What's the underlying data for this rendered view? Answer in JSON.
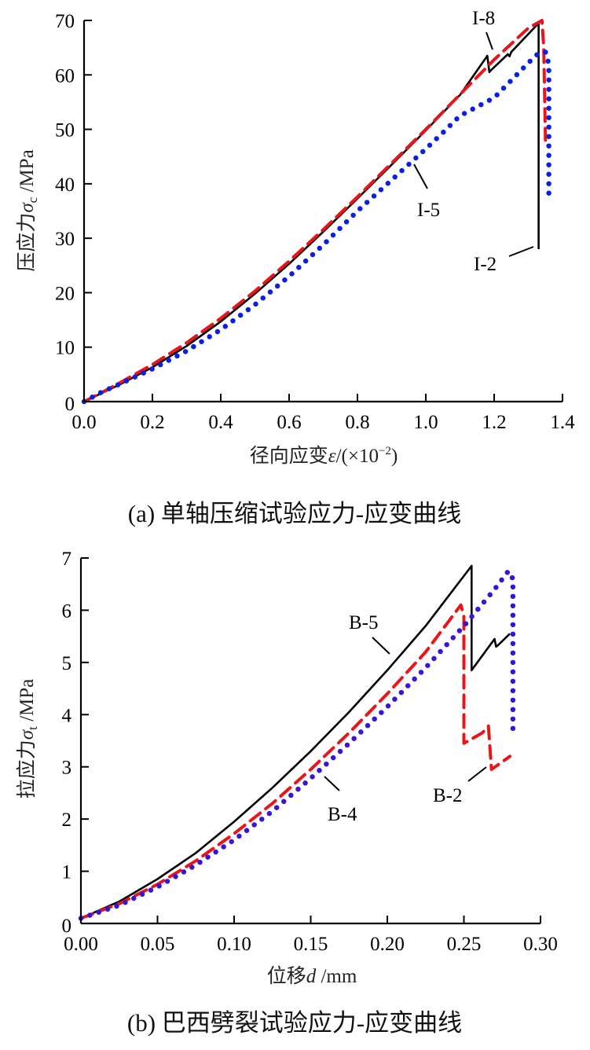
{
  "chart_data": [
    {
      "type": "line",
      "panel": "a",
      "caption": "(a)  单轴压缩试验应力-应变曲线",
      "xlabel": "径向应变ε /(×10⁻²)",
      "xlabel_parts": {
        "text": "径向应变",
        "symbol": "ε",
        "unit": "/(×10",
        "exp": "−2",
        "close": ")"
      },
      "ylabel_parts": {
        "text": "压应力",
        "symbol": "σ",
        "sub": "c",
        "unit": " /MPa"
      },
      "ylabel": "压应力σc /MPa",
      "xlim": [
        0,
        1.4
      ],
      "ylim": [
        0,
        70
      ],
      "x_ticks": [
        "0.0",
        "0.2",
        "0.4",
        "0.6",
        "0.8",
        "1.0",
        "1.2",
        "1.4"
      ],
      "x_tick_values": [
        0,
        0.2,
        0.4,
        0.6,
        0.8,
        1.0,
        1.2,
        1.4
      ],
      "y_ticks": [
        "0",
        "10",
        "20",
        "30",
        "40",
        "50",
        "60",
        "70"
      ],
      "y_tick_values": [
        0,
        10,
        20,
        30,
        40,
        50,
        60,
        70
      ],
      "grid": false,
      "series": [
        {
          "name": "I-2",
          "style": "solid",
          "color": "#000000",
          "x": [
            0,
            0.05,
            0.1,
            0.2,
            0.3,
            0.4,
            0.5,
            0.6,
            0.7,
            0.8,
            0.9,
            1.0,
            1.1,
            1.18,
            1.186,
            1.19,
            1.24,
            1.245,
            1.25,
            1.33,
            1.33
          ],
          "y": [
            0,
            1.5,
            3,
            6.3,
            10.2,
            14.7,
            19.8,
            25.3,
            31.2,
            37.3,
            43.5,
            49.8,
            56.3,
            63.5,
            60.5,
            60.8,
            63.8,
            63.4,
            64.2,
            69.5,
            28
          ]
        },
        {
          "name": "I-8",
          "style": "dashed",
          "color": "#e8151b",
          "x": [
            0,
            0.05,
            0.1,
            0.2,
            0.3,
            0.4,
            0.5,
            0.6,
            0.7,
            0.8,
            0.9,
            1.0,
            1.1,
            1.2,
            1.3,
            1.34,
            1.345,
            1.35
          ],
          "y": [
            0,
            1.6,
            3.3,
            6.8,
            10.8,
            15.3,
            20.3,
            25.8,
            31.6,
            37.6,
            43.8,
            50.0,
            56.4,
            62.8,
            68.6,
            70,
            65,
            48
          ]
        },
        {
          "name": "I-5",
          "style": "dotted",
          "color": "#0a1ee6",
          "x": [
            0,
            0.05,
            0.1,
            0.2,
            0.3,
            0.4,
            0.5,
            0.6,
            0.7,
            0.8,
            0.9,
            1.0,
            1.05,
            1.1,
            1.2,
            1.25,
            1.3,
            1.33,
            1.35,
            1.36,
            1.36
          ],
          "y": [
            0,
            1.7,
            3.1,
            6.0,
            9.3,
            13.2,
            17.8,
            23.0,
            28.8,
            35.0,
            40.7,
            46.4,
            49.4,
            52.5,
            55.8,
            59.0,
            62.2,
            64.0,
            64.2,
            62,
            37
          ]
        }
      ],
      "annotations": [
        "I-8",
        "I-5",
        "I-2"
      ]
    },
    {
      "type": "line",
      "panel": "b",
      "caption": "(b)  巴西劈裂试验应力-应变曲线",
      "xlabel": "位移d /mm",
      "xlabel_parts": {
        "text": "位移",
        "symbol": "d",
        "unit": " /mm"
      },
      "ylabel_parts": {
        "text": "拉应力",
        "symbol": "σ",
        "sub": "t",
        "unit": " /MPa"
      },
      "ylabel": "拉应力σt /MPa",
      "xlim": [
        0,
        0.3
      ],
      "ylim": [
        0,
        7
      ],
      "x_ticks": [
        "0.00",
        "0.05",
        "0.10",
        "0.15",
        "0.20",
        "0.25",
        "0.30"
      ],
      "x_tick_values": [
        0,
        0.05,
        0.1,
        0.15,
        0.2,
        0.25,
        0.3
      ],
      "y_ticks": [
        "0",
        "1",
        "2",
        "3",
        "4",
        "5",
        "6",
        "7"
      ],
      "y_tick_values": [
        0,
        1,
        2,
        3,
        4,
        5,
        6,
        7
      ],
      "grid": false,
      "series": [
        {
          "name": "B-5",
          "style": "solid",
          "color": "#000000",
          "x": [
            0,
            0.025,
            0.05,
            0.075,
            0.1,
            0.125,
            0.15,
            0.175,
            0.2,
            0.225,
            0.255,
            0.255,
            0.27,
            0.271,
            0.273,
            0.28
          ],
          "y": [
            0.1,
            0.42,
            0.85,
            1.35,
            1.95,
            2.6,
            3.3,
            4.05,
            4.85,
            5.7,
            6.85,
            4.85,
            5.45,
            5.3,
            5.35,
            5.55
          ]
        },
        {
          "name": "B-2",
          "style": "dashed",
          "color": "#e8151b",
          "x": [
            0,
            0.025,
            0.05,
            0.075,
            0.1,
            0.125,
            0.15,
            0.175,
            0.2,
            0.225,
            0.248,
            0.25,
            0.25,
            0.262,
            0.266,
            0.268,
            0.28
          ],
          "y": [
            0.1,
            0.38,
            0.75,
            1.2,
            1.72,
            2.3,
            2.95,
            3.65,
            4.4,
            5.2,
            6.1,
            5.9,
            3.45,
            3.65,
            3.78,
            2.95,
            3.2
          ]
        },
        {
          "name": "B-4",
          "style": "dotted",
          "color": "#3a14d6",
          "x": [
            0,
            0.025,
            0.05,
            0.075,
            0.1,
            0.125,
            0.15,
            0.175,
            0.2,
            0.225,
            0.25,
            0.27,
            0.279,
            0.282,
            0.282
          ],
          "y": [
            0.1,
            0.35,
            0.7,
            1.12,
            1.6,
            2.15,
            2.78,
            3.45,
            4.15,
            4.9,
            5.7,
            6.4,
            6.75,
            6.6,
            3.7
          ]
        }
      ],
      "annotations": [
        "B-5",
        "B-4",
        "B-2"
      ]
    }
  ]
}
